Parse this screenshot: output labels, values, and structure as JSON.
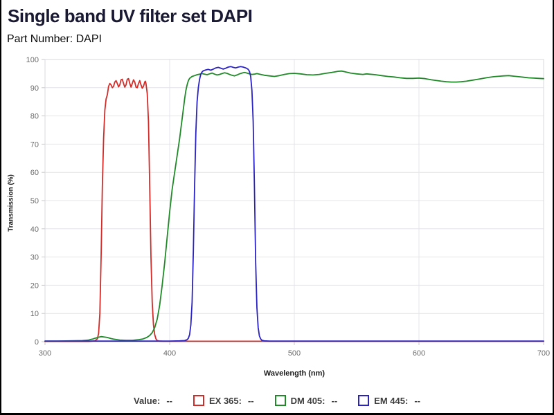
{
  "header": {
    "title": "Single band UV filter set DAPI",
    "subtitle": "Part Number: DAPI"
  },
  "colors": {
    "accent_red": "#d22c29",
    "accent_green": "#1f8a27",
    "accent_blue": "#2b22c4",
    "grid": "#e4e4e8",
    "plot_border": "#d8d8dc",
    "tick_mark": "#c9c9c9",
    "tick_text": "#6b6b6b",
    "title_text": "#191933",
    "legend_text": "#3d3d3d"
  },
  "legend": {
    "value_label": "Value:",
    "value": "--",
    "items": [
      {
        "name": "ex-365",
        "label": "EX 365:",
        "value": "--",
        "color": "#d22c29"
      },
      {
        "name": "dm-405",
        "label": "DM 405:",
        "value": "--",
        "color": "#1f8a27"
      },
      {
        "name": "em-445",
        "label": "EM 445:",
        "value": "--",
        "color": "#2b22c4"
      }
    ]
  },
  "chart_data": {
    "type": "line",
    "title": "Single band UV filter set DAPI",
    "xlabel": "Wavelength (nm)",
    "ylabel": "Transmission (%)",
    "xlim": [
      300,
      700
    ],
    "ylim": [
      0,
      100
    ],
    "x_ticks": [
      300,
      400,
      500,
      600,
      700
    ],
    "y_ticks": [
      0,
      10,
      20,
      30,
      40,
      50,
      60,
      70,
      80,
      90,
      100
    ],
    "grid": true,
    "legend_position": "bottom",
    "series": [
      {
        "name": "EX 365",
        "color": "#d22c29",
        "points": [
          [
            300,
            0.1
          ],
          [
            320,
            0.1
          ],
          [
            335,
            0.1
          ],
          [
            340,
            0.3
          ],
          [
            342,
            1
          ],
          [
            343,
            3
          ],
          [
            344,
            10
          ],
          [
            345,
            30
          ],
          [
            346,
            55
          ],
          [
            347,
            72
          ],
          [
            348,
            82
          ],
          [
            349,
            86
          ],
          [
            350,
            87.5
          ],
          [
            350.5,
            89
          ],
          [
            351,
            90.5
          ],
          [
            352,
            91.5
          ],
          [
            353,
            91
          ],
          [
            354,
            90
          ],
          [
            355,
            90.5
          ],
          [
            356,
            92
          ],
          [
            357,
            92.5
          ],
          [
            358,
            91.5
          ],
          [
            359,
            90.3
          ],
          [
            360,
            91
          ],
          [
            361,
            92.8
          ],
          [
            362,
            93
          ],
          [
            363,
            91.5
          ],
          [
            364,
            90.2
          ],
          [
            365,
            91
          ],
          [
            366,
            93
          ],
          [
            367,
            93.2
          ],
          [
            368,
            91.5
          ],
          [
            369,
            90.2
          ],
          [
            370,
            91.5
          ],
          [
            371,
            92.8
          ],
          [
            372,
            92
          ],
          [
            373,
            90.2
          ],
          [
            374,
            90
          ],
          [
            375,
            91.5
          ],
          [
            376,
            92.5
          ],
          [
            377,
            91
          ],
          [
            378,
            89.8
          ],
          [
            379,
            90.5
          ],
          [
            380,
            92
          ],
          [
            380.5,
            92.3
          ],
          [
            381,
            91.5
          ],
          [
            382,
            88
          ],
          [
            383,
            78
          ],
          [
            384,
            55
          ],
          [
            385,
            30
          ],
          [
            386,
            14
          ],
          [
            387,
            6
          ],
          [
            388,
            2.5
          ],
          [
            389,
            1
          ],
          [
            390,
            0.4
          ],
          [
            392,
            0.2
          ],
          [
            395,
            0.15
          ],
          [
            400,
            0.15
          ],
          [
            470,
            0.15
          ],
          [
            600,
            0.15
          ],
          [
            700,
            0.15
          ]
        ]
      },
      {
        "name": "DM 405",
        "color": "#1f8a27",
        "points": [
          [
            300,
            0.2
          ],
          [
            310,
            0.2
          ],
          [
            320,
            0.3
          ],
          [
            330,
            0.4
          ],
          [
            335,
            0.6
          ],
          [
            338,
            0.9
          ],
          [
            340,
            1.2
          ],
          [
            343,
            1.6
          ],
          [
            345,
            1.8
          ],
          [
            347,
            1.7
          ],
          [
            350,
            1.5
          ],
          [
            353,
            1.1
          ],
          [
            355,
            0.9
          ],
          [
            358,
            0.7
          ],
          [
            360,
            0.6
          ],
          [
            365,
            0.5
          ],
          [
            370,
            0.5
          ],
          [
            375,
            0.7
          ],
          [
            378,
            0.9
          ],
          [
            380,
            1.2
          ],
          [
            382,
            1.6
          ],
          [
            384,
            2.2
          ],
          [
            386,
            3.2
          ],
          [
            388,
            5
          ],
          [
            390,
            8
          ],
          [
            392,
            13
          ],
          [
            394,
            20
          ],
          [
            396,
            28
          ],
          [
            398,
            37
          ],
          [
            400,
            46
          ],
          [
            402,
            54
          ],
          [
            404,
            60
          ],
          [
            406,
            66
          ],
          [
            408,
            72
          ],
          [
            410,
            79
          ],
          [
            412,
            86
          ],
          [
            413,
            89
          ],
          [
            414,
            91
          ],
          [
            415,
            92.5
          ],
          [
            416,
            93.3
          ],
          [
            418,
            94
          ],
          [
            420,
            94.3
          ],
          [
            422,
            94.6
          ],
          [
            424,
            94.8
          ],
          [
            426,
            95
          ],
          [
            428,
            94.8
          ],
          [
            430,
            94.6
          ],
          [
            432,
            94.9
          ],
          [
            434,
            95.2
          ],
          [
            436,
            94.8
          ],
          [
            438,
            94.5
          ],
          [
            440,
            94.7
          ],
          [
            442,
            95
          ],
          [
            444,
            95.3
          ],
          [
            446,
            95.1
          ],
          [
            448,
            94.7
          ],
          [
            450,
            94.4
          ],
          [
            452,
            94.2
          ],
          [
            454,
            94.5
          ],
          [
            456,
            94.9
          ],
          [
            458,
            95.2
          ],
          [
            460,
            95.4
          ],
          [
            462,
            95.2
          ],
          [
            464,
            94.9
          ],
          [
            466,
            94.7
          ],
          [
            468,
            94.8
          ],
          [
            470,
            95
          ],
          [
            473,
            94.7
          ],
          [
            476,
            94.4
          ],
          [
            480,
            94.2
          ],
          [
            484,
            94
          ],
          [
            488,
            94.3
          ],
          [
            492,
            94.7
          ],
          [
            496,
            95
          ],
          [
            500,
            95.1
          ],
          [
            505,
            94.9
          ],
          [
            510,
            94.6
          ],
          [
            515,
            94.5
          ],
          [
            520,
            94.7
          ],
          [
            525,
            95.1
          ],
          [
            530,
            95.4
          ],
          [
            535,
            95.8
          ],
          [
            538,
            95.9
          ],
          [
            540,
            95.7
          ],
          [
            545,
            95.2
          ],
          [
            550,
            94.9
          ],
          [
            555,
            94.7
          ],
          [
            558,
            94.9
          ],
          [
            560,
            94.8
          ],
          [
            565,
            94.6
          ],
          [
            570,
            94.3
          ],
          [
            575,
            94
          ],
          [
            580,
            93.8
          ],
          [
            585,
            93.5
          ],
          [
            590,
            93.3
          ],
          [
            595,
            93.3
          ],
          [
            600,
            93.4
          ],
          [
            605,
            93.2
          ],
          [
            610,
            92.8
          ],
          [
            615,
            92.5
          ],
          [
            618,
            92.3
          ],
          [
            622,
            92.1
          ],
          [
            626,
            92
          ],
          [
            630,
            92
          ],
          [
            634,
            92.1
          ],
          [
            638,
            92.3
          ],
          [
            642,
            92.6
          ],
          [
            646,
            92.9
          ],
          [
            650,
            93.2
          ],
          [
            655,
            93.6
          ],
          [
            660,
            93.9
          ],
          [
            665,
            94.1
          ],
          [
            668,
            94.2
          ],
          [
            672,
            94.3
          ],
          [
            676,
            94.1
          ],
          [
            680,
            93.9
          ],
          [
            684,
            93.7
          ],
          [
            688,
            93.5
          ],
          [
            692,
            93.4
          ],
          [
            696,
            93.3
          ],
          [
            700,
            93.2
          ]
        ]
      },
      {
        "name": "EM 445",
        "color": "#2b22c4",
        "points": [
          [
            300,
            0.2
          ],
          [
            350,
            0.2
          ],
          [
            400,
            0.2
          ],
          [
            408,
            0.3
          ],
          [
            412,
            0.4
          ],
          [
            414,
            0.7
          ],
          [
            415,
            1.2
          ],
          [
            416,
            2.5
          ],
          [
            417,
            6
          ],
          [
            418,
            14
          ],
          [
            419,
            32
          ],
          [
            420,
            55
          ],
          [
            421,
            74
          ],
          [
            422,
            85
          ],
          [
            423,
            90
          ],
          [
            424,
            93
          ],
          [
            425,
            94.8
          ],
          [
            426,
            95.6
          ],
          [
            427,
            96
          ],
          [
            429,
            96.3
          ],
          [
            431,
            96.5
          ],
          [
            433,
            96.2
          ],
          [
            435,
            96.6
          ],
          [
            437,
            97
          ],
          [
            439,
            97.2
          ],
          [
            441,
            96.9
          ],
          [
            443,
            96.6
          ],
          [
            445,
            96.9
          ],
          [
            447,
            97.3
          ],
          [
            449,
            97.5
          ],
          [
            451,
            97.2
          ],
          [
            453,
            97
          ],
          [
            455,
            97.3
          ],
          [
            457,
            97.5
          ],
          [
            459,
            97.3
          ],
          [
            461,
            97
          ],
          [
            462,
            96.8
          ],
          [
            463,
            96.5
          ],
          [
            464,
            95.8
          ],
          [
            465,
            94
          ],
          [
            466,
            89
          ],
          [
            467,
            78
          ],
          [
            468,
            55
          ],
          [
            469,
            28
          ],
          [
            470,
            12
          ],
          [
            471,
            5
          ],
          [
            472,
            2
          ],
          [
            473,
            1
          ],
          [
            474,
            0.5
          ],
          [
            476,
            0.3
          ],
          [
            480,
            0.2
          ],
          [
            500,
            0.2
          ],
          [
            550,
            0.2
          ],
          [
            600,
            0.2
          ],
          [
            650,
            0.2
          ],
          [
            700,
            0.2
          ]
        ]
      }
    ]
  }
}
